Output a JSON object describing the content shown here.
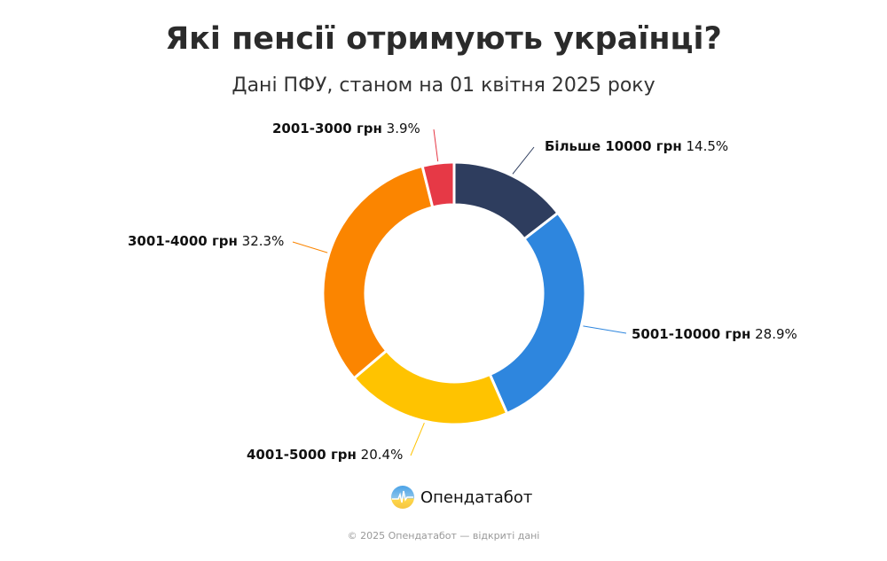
{
  "title": "Які пенсії отримують українці?",
  "subtitle": "Дані ПФУ, станом на 01 квітня 2025 року",
  "chart_data": {
    "type": "pie",
    "variant": "donut",
    "title": "Які пенсії отримують українці?",
    "subtitle": "Дані ПФУ, станом на 01 квітня 2025 року",
    "unit": "%",
    "slices": [
      {
        "label": "Більше 10000 грн",
        "value": 14.5,
        "value_label": "14.5%",
        "color": "#2e3d5e"
      },
      {
        "label": "5001-10000 грн",
        "value": 28.9,
        "value_label": "28.9%",
        "color": "#2e86de"
      },
      {
        "label": "4001-5000 грн",
        "value": 20.4,
        "value_label": "20.4%",
        "color": "#ffc300"
      },
      {
        "label": "3001-4000 грн",
        "value": 32.3,
        "value_label": "32.3%",
        "color": "#fb8500"
      },
      {
        "label": "2001-3000 грн",
        "value": 3.9,
        "value_label": "3.9%",
        "color": "#e63946"
      }
    ]
  },
  "brand": {
    "name": "Опендатабот",
    "icon": "opendatabot-logo-icon"
  },
  "footer": "© 2025 Опендатабот — відкриті дані"
}
